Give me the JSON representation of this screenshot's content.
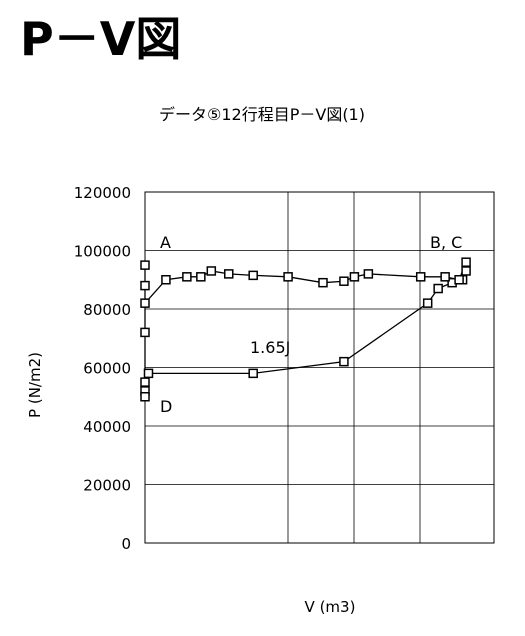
{
  "header": {
    "title": "P－V図"
  },
  "chart_data": {
    "type": "line",
    "title": "データ⑤12行程目P－V図(1)",
    "x_label": "V (m3)",
    "y_label": "P (N/m2)",
    "annotations": [
      "A",
      "B, C",
      "D",
      "1.65J"
    ],
    "xlim": [
      0,
      100
    ],
    "ylim": [
      0,
      120000
    ],
    "yticks": [
      0,
      20000,
      40000,
      60000,
      80000,
      100000,
      120000
    ],
    "grid": true,
    "color": "#000000",
    "x": [
      0,
      0,
      1,
      31,
      57,
      81,
      84,
      88,
      91,
      92,
      92,
      90,
      86,
      79,
      64,
      60,
      57,
      51,
      41,
      31,
      24,
      19,
      16,
      12,
      6,
      0,
      0,
      0,
      0,
      0
    ],
    "values": [
      52000,
      55000,
      58000,
      58000,
      62000,
      82000,
      87000,
      89000,
      90000,
      93000,
      96000,
      90000,
      91000,
      91000,
      92000,
      91000,
      89500,
      89000,
      91000,
      91500,
      92000,
      93000,
      91000,
      91000,
      90000,
      82000,
      88000,
      95000,
      72000,
      50000
    ]
  }
}
